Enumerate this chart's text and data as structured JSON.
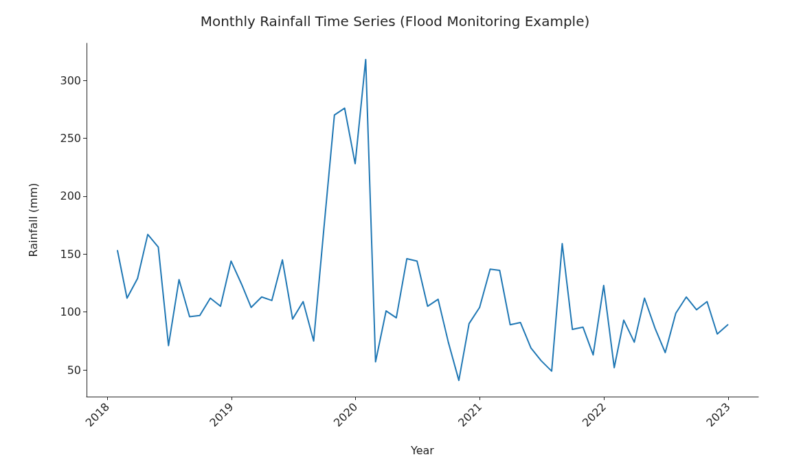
{
  "chart_data": {
    "type": "line",
    "title": "Monthly Rainfall Time Series (Flood Monitoring Example)",
    "xlabel": "Year",
    "ylabel": "Rainfall (mm)",
    "x": [
      "2018-01-31",
      "2018-02-28",
      "2018-03-31",
      "2018-04-30",
      "2018-05-31",
      "2018-06-30",
      "2018-07-31",
      "2018-08-31",
      "2018-09-30",
      "2018-10-31",
      "2018-11-30",
      "2018-12-31",
      "2019-01-31",
      "2019-02-28",
      "2019-03-31",
      "2019-04-30",
      "2019-05-31",
      "2019-06-30",
      "2019-07-31",
      "2019-08-31",
      "2019-09-30",
      "2019-10-31",
      "2019-11-30",
      "2019-12-31",
      "2020-01-31",
      "2020-02-29",
      "2020-03-31",
      "2020-04-30",
      "2020-05-31",
      "2020-06-30",
      "2020-07-31",
      "2020-08-31",
      "2020-09-30",
      "2020-10-31",
      "2020-11-30",
      "2020-12-31",
      "2021-01-31",
      "2021-02-28",
      "2021-03-31",
      "2021-04-30",
      "2021-05-31",
      "2021-06-30",
      "2021-07-31",
      "2021-08-31",
      "2021-09-30",
      "2021-10-31",
      "2021-11-30",
      "2021-12-31",
      "2022-01-31",
      "2022-02-28",
      "2022-03-31",
      "2022-04-30",
      "2022-05-31",
      "2022-06-30",
      "2022-07-31",
      "2022-08-31",
      "2022-09-30",
      "2022-10-31",
      "2022-11-30",
      "2022-12-31"
    ],
    "series": [
      {
        "color": "#1f77b4",
        "values": [
          153,
          112,
          129,
          167,
          156,
          71,
          128,
          96,
          97,
          112,
          105,
          144,
          124,
          104,
          113,
          110,
          145,
          94,
          109,
          75,
          172,
          270,
          276,
          228,
          318,
          57,
          101,
          95,
          146,
          144,
          105,
          111,
          74,
          41,
          90,
          104,
          137,
          136,
          89,
          91,
          69,
          58,
          49,
          159,
          85,
          87,
          63,
          123,
          52,
          93,
          74,
          112,
          86,
          65,
          99,
          113,
          102,
          109,
          81,
          89
        ]
      }
    ],
    "xlim": [
      "2017-11-01",
      "2023-03-31"
    ],
    "xticks": [
      {
        "value": "2018-01-01",
        "label": "2018"
      },
      {
        "value": "2019-01-01",
        "label": "2019"
      },
      {
        "value": "2020-01-01",
        "label": "2020"
      },
      {
        "value": "2021-01-01",
        "label": "2021"
      },
      {
        "value": "2022-01-01",
        "label": "2022"
      },
      {
        "value": "2023-01-01",
        "label": "2023"
      }
    ],
    "ylim": [
      27,
      332
    ],
    "yticks": [
      50,
      100,
      150,
      200,
      250,
      300
    ],
    "grid": false,
    "marker": "none",
    "line_style": "solid"
  }
}
